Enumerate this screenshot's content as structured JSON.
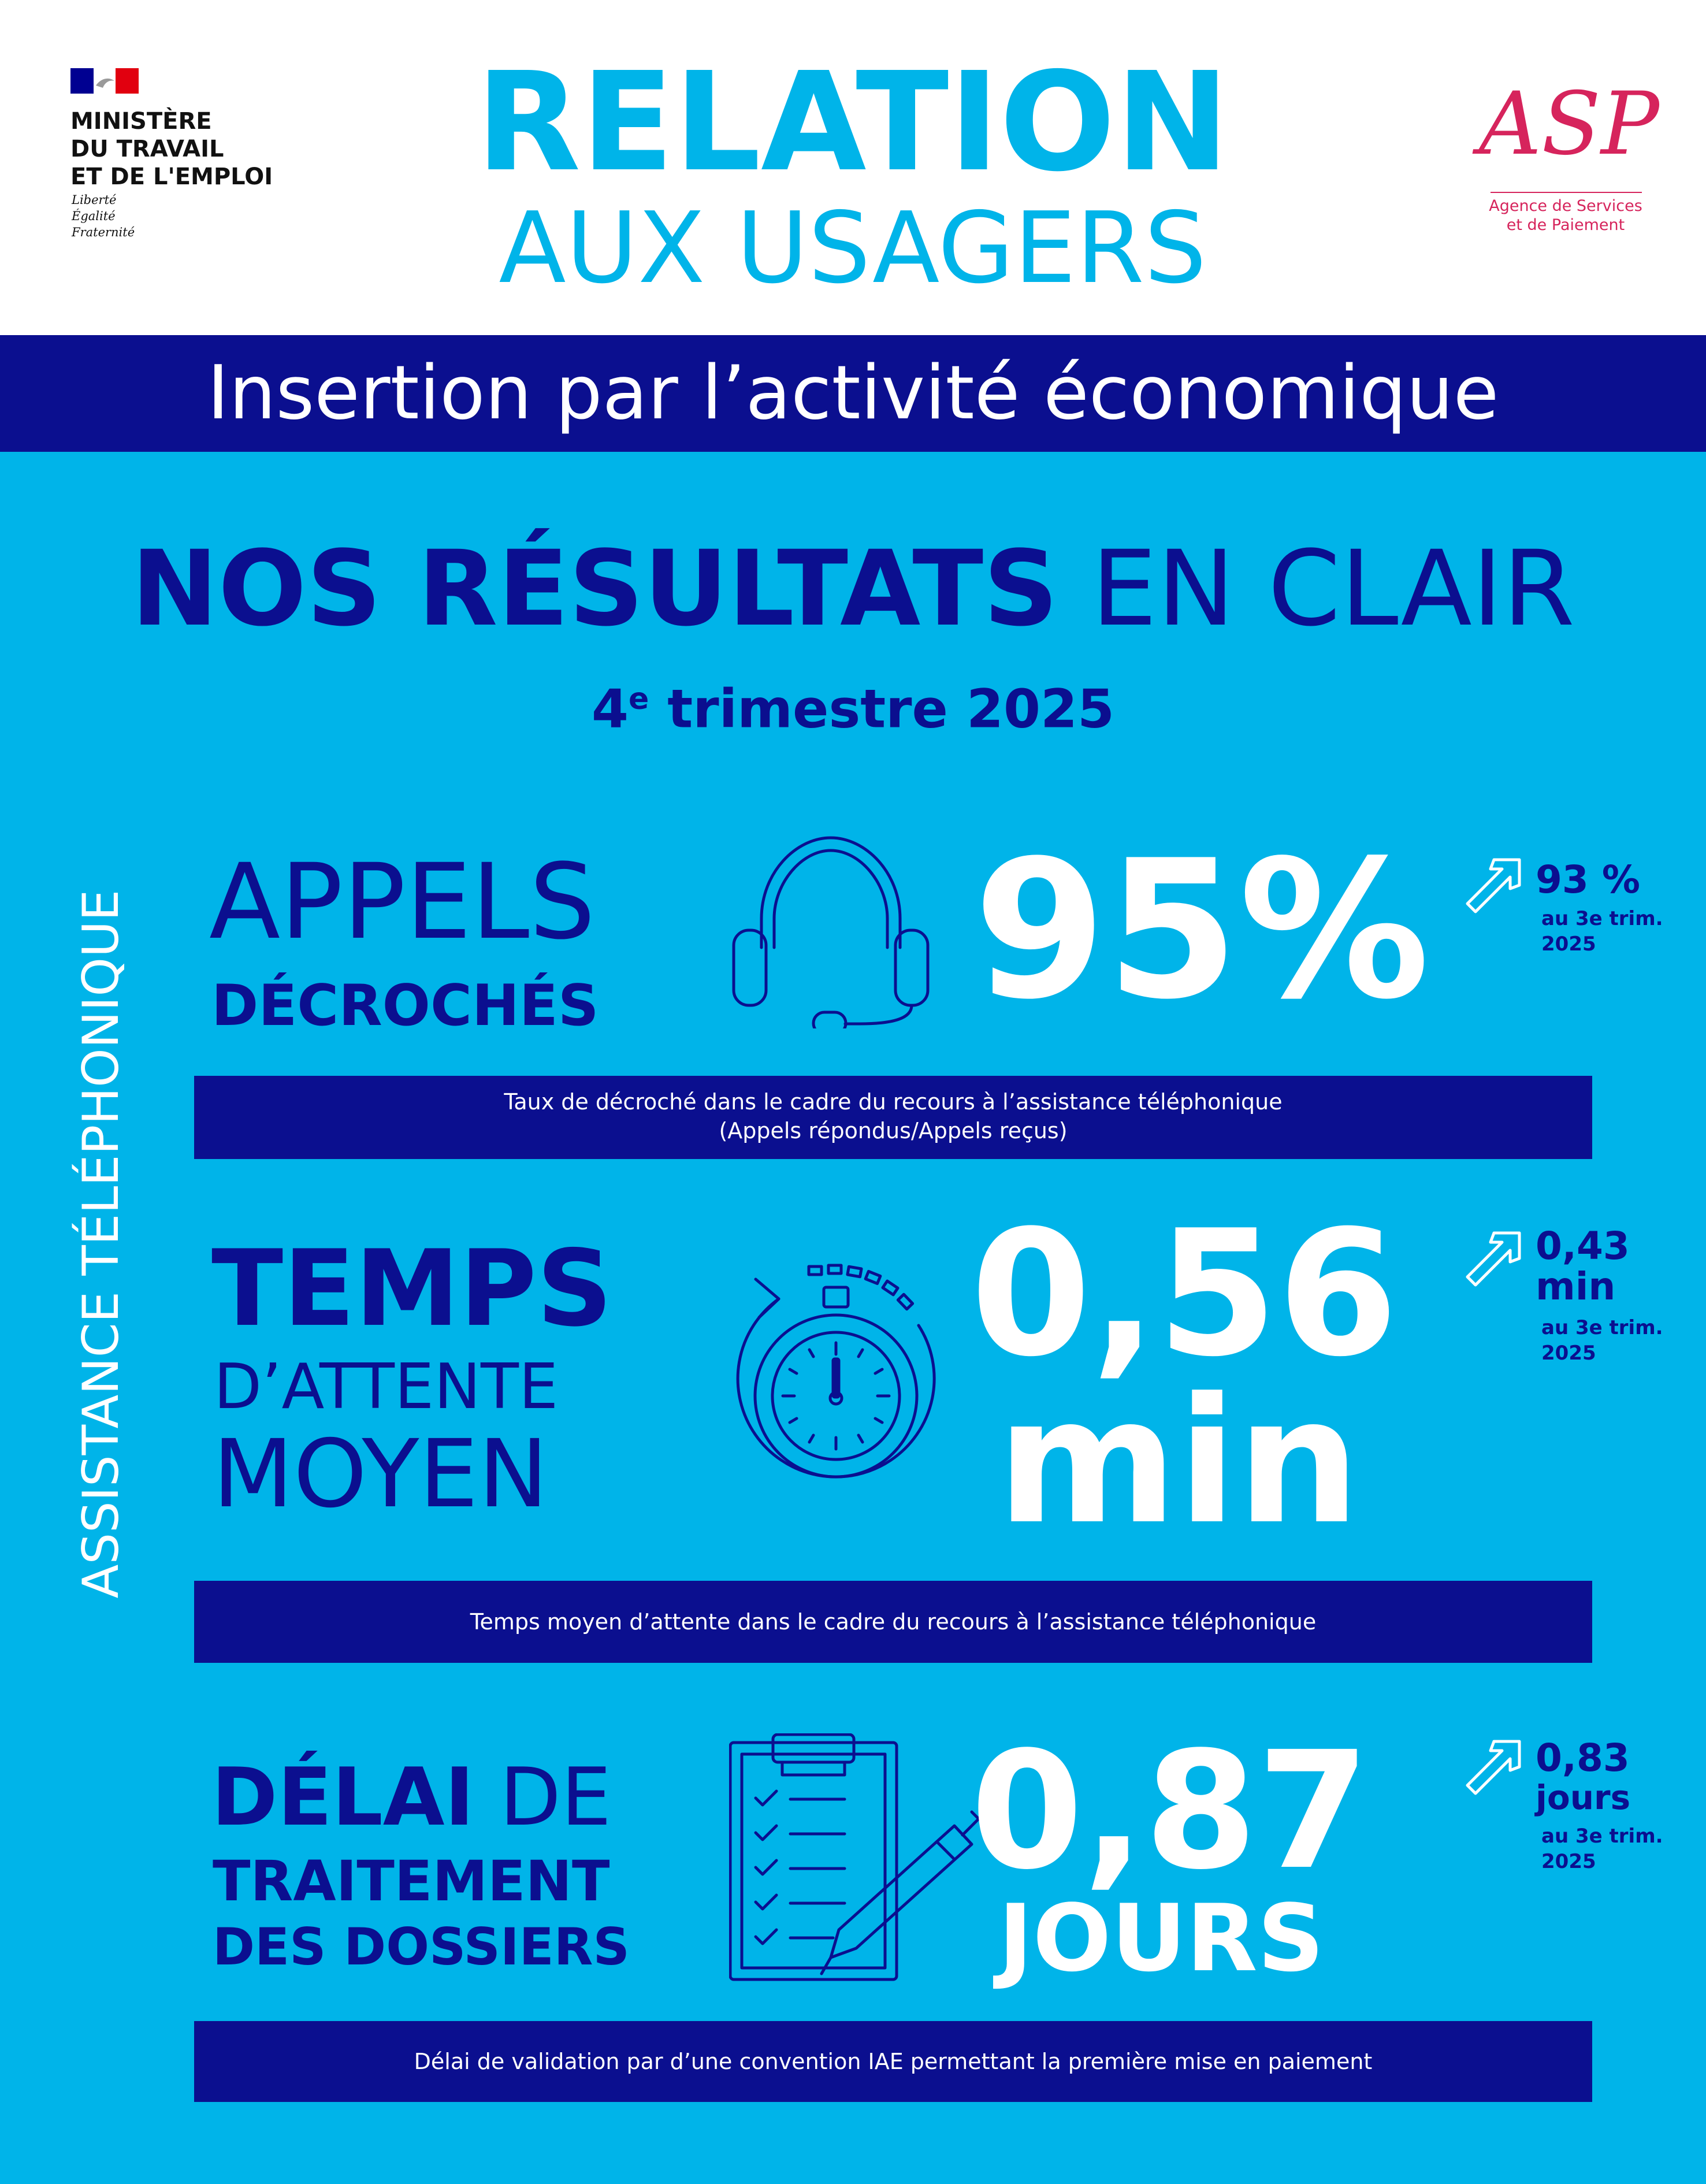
{
  "ministry": {
    "line1": "MINISTÈRE",
    "line2": "DU TRAVAIL",
    "line3": "ET DE L'EMPLOI",
    "motto1": "Liberté",
    "motto2": "Égalité",
    "motto3": "Fraternité"
  },
  "header": {
    "title_line1": "RELATION",
    "title_line2": "AUX USAGERS"
  },
  "asp": {
    "logo_text": "ASP",
    "subtitle_line1": "Agence de Services",
    "subtitle_line2": "et de Paiement"
  },
  "band": {
    "text": "Insertion par l’activité économique"
  },
  "section": {
    "title_bold": "NOS RÉSULTATS",
    "title_light": "EN CLAIR",
    "period_number": "4",
    "period_sup": "e",
    "period_rest": " trimestre 2025",
    "side_label": "ASSISTANCE TÉLÉPHONIQUE"
  },
  "metrics": [
    {
      "label_line1": "APPELS",
      "label_line2": "DÉCROCHÉS",
      "value_line1": "95%",
      "previous_value": "93 %",
      "previous_unit": "",
      "previous_ref": "au 3e trim.",
      "previous_year": "2025",
      "description_line1": "Taux de décroché dans le cadre du recours à l’assistance téléphonique",
      "description_line2": "(Appels répondus/Appels reçus)",
      "icon": "headset-icon",
      "trend_icon": "arrow-up-right-icon"
    },
    {
      "label_line1": "TEMPS",
      "label_line2": "D’ATTENTE",
      "label_line3": "MOYEN",
      "value_line1": "0,56",
      "value_line2": "min",
      "previous_value": "0,43",
      "previous_unit": "min",
      "previous_ref": "au 3e trim.",
      "previous_year": "2025",
      "description_line1": "Temps moyen d’attente dans le cadre du recours à l’assistance téléphonique",
      "icon": "stopwatch-icon",
      "trend_icon": "arrow-up-right-icon"
    },
    {
      "label_line1_bold": "DÉLAI",
      "label_line1_light": "DE",
      "label_line2": "TRAITEMENT",
      "label_line3": "DES DOSSIERS",
      "value_line1": "0,87",
      "value_line2": "JOURS",
      "previous_value": "0,83",
      "previous_unit": "jours",
      "previous_ref": "au 3e trim.",
      "previous_year": "2025",
      "description_line1": "Délai de validation par d’une convention IAE permettant la première mise en paiement",
      "icon": "clipboard-checklist-icon",
      "trend_icon": "arrow-up-right-icon"
    }
  ],
  "colors": {
    "background": "#00b4e9",
    "dark_blue": "#0b0f8f",
    "white": "#ffffff",
    "asp_red": "#d6245c"
  }
}
